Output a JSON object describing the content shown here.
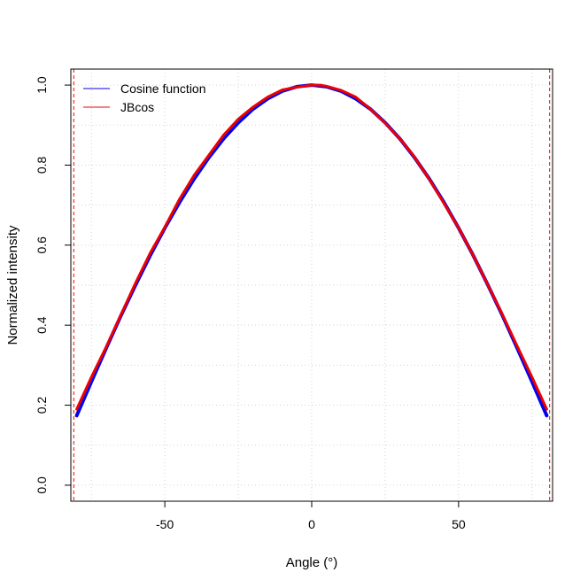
{
  "chart_data": {
    "type": "line",
    "title": "",
    "xlabel": "Angle (°)",
    "ylabel": "Normalized intensity",
    "xlim": [
      -82,
      82
    ],
    "ylim": [
      -0.04,
      1.04
    ],
    "x_ticks": [
      -50,
      0,
      50
    ],
    "y_ticks": [
      0.0,
      0.2,
      0.4,
      0.6,
      0.8,
      1.0
    ],
    "x_tick_labels": [
      "-50",
      "0",
      "50"
    ],
    "y_tick_labels": [
      "0.0",
      "0.2",
      "0.4",
      "0.6",
      "0.8",
      "1.0"
    ],
    "grid": true,
    "legend_position": "top-left",
    "vlines": [
      -81,
      81
    ],
    "vline_color": "#ff0000",
    "series": [
      {
        "name": "Cosine function",
        "color": "#0000ee",
        "x": [
          -80,
          -75,
          -70,
          -65,
          -60,
          -55,
          -50,
          -45,
          -40,
          -35,
          -30,
          -25,
          -20,
          -15,
          -10,
          -5,
          0,
          5,
          10,
          15,
          20,
          25,
          30,
          35,
          40,
          45,
          50,
          55,
          60,
          65,
          70,
          75,
          80
        ],
        "y": [
          0.174,
          0.259,
          0.342,
          0.423,
          0.5,
          0.574,
          0.643,
          0.707,
          0.766,
          0.819,
          0.866,
          0.906,
          0.94,
          0.966,
          0.985,
          0.996,
          1.0,
          0.996,
          0.985,
          0.966,
          0.94,
          0.906,
          0.866,
          0.819,
          0.766,
          0.707,
          0.643,
          0.574,
          0.5,
          0.423,
          0.342,
          0.259,
          0.174
        ]
      },
      {
        "name": "JBcos",
        "color": "#ee0000",
        "x": [
          -80,
          -75,
          -70,
          -65,
          -60,
          -55,
          -50,
          -45,
          -40,
          -35,
          -30,
          -25,
          -20,
          -15,
          -10,
          -5,
          0,
          3,
          5,
          10,
          15,
          20,
          25,
          30,
          35,
          40,
          45,
          50,
          55,
          60,
          65,
          70,
          75,
          80
        ],
        "y": [
          0.19,
          0.27,
          0.345,
          0.425,
          0.505,
          0.58,
          0.645,
          0.715,
          0.775,
          0.825,
          0.875,
          0.915,
          0.945,
          0.97,
          0.988,
          0.995,
          1.0,
          1.0,
          0.997,
          0.987,
          0.97,
          0.94,
          0.905,
          0.866,
          0.82,
          0.765,
          0.705,
          0.643,
          0.574,
          0.5,
          0.425,
          0.347,
          0.27,
          0.19
        ]
      }
    ]
  }
}
